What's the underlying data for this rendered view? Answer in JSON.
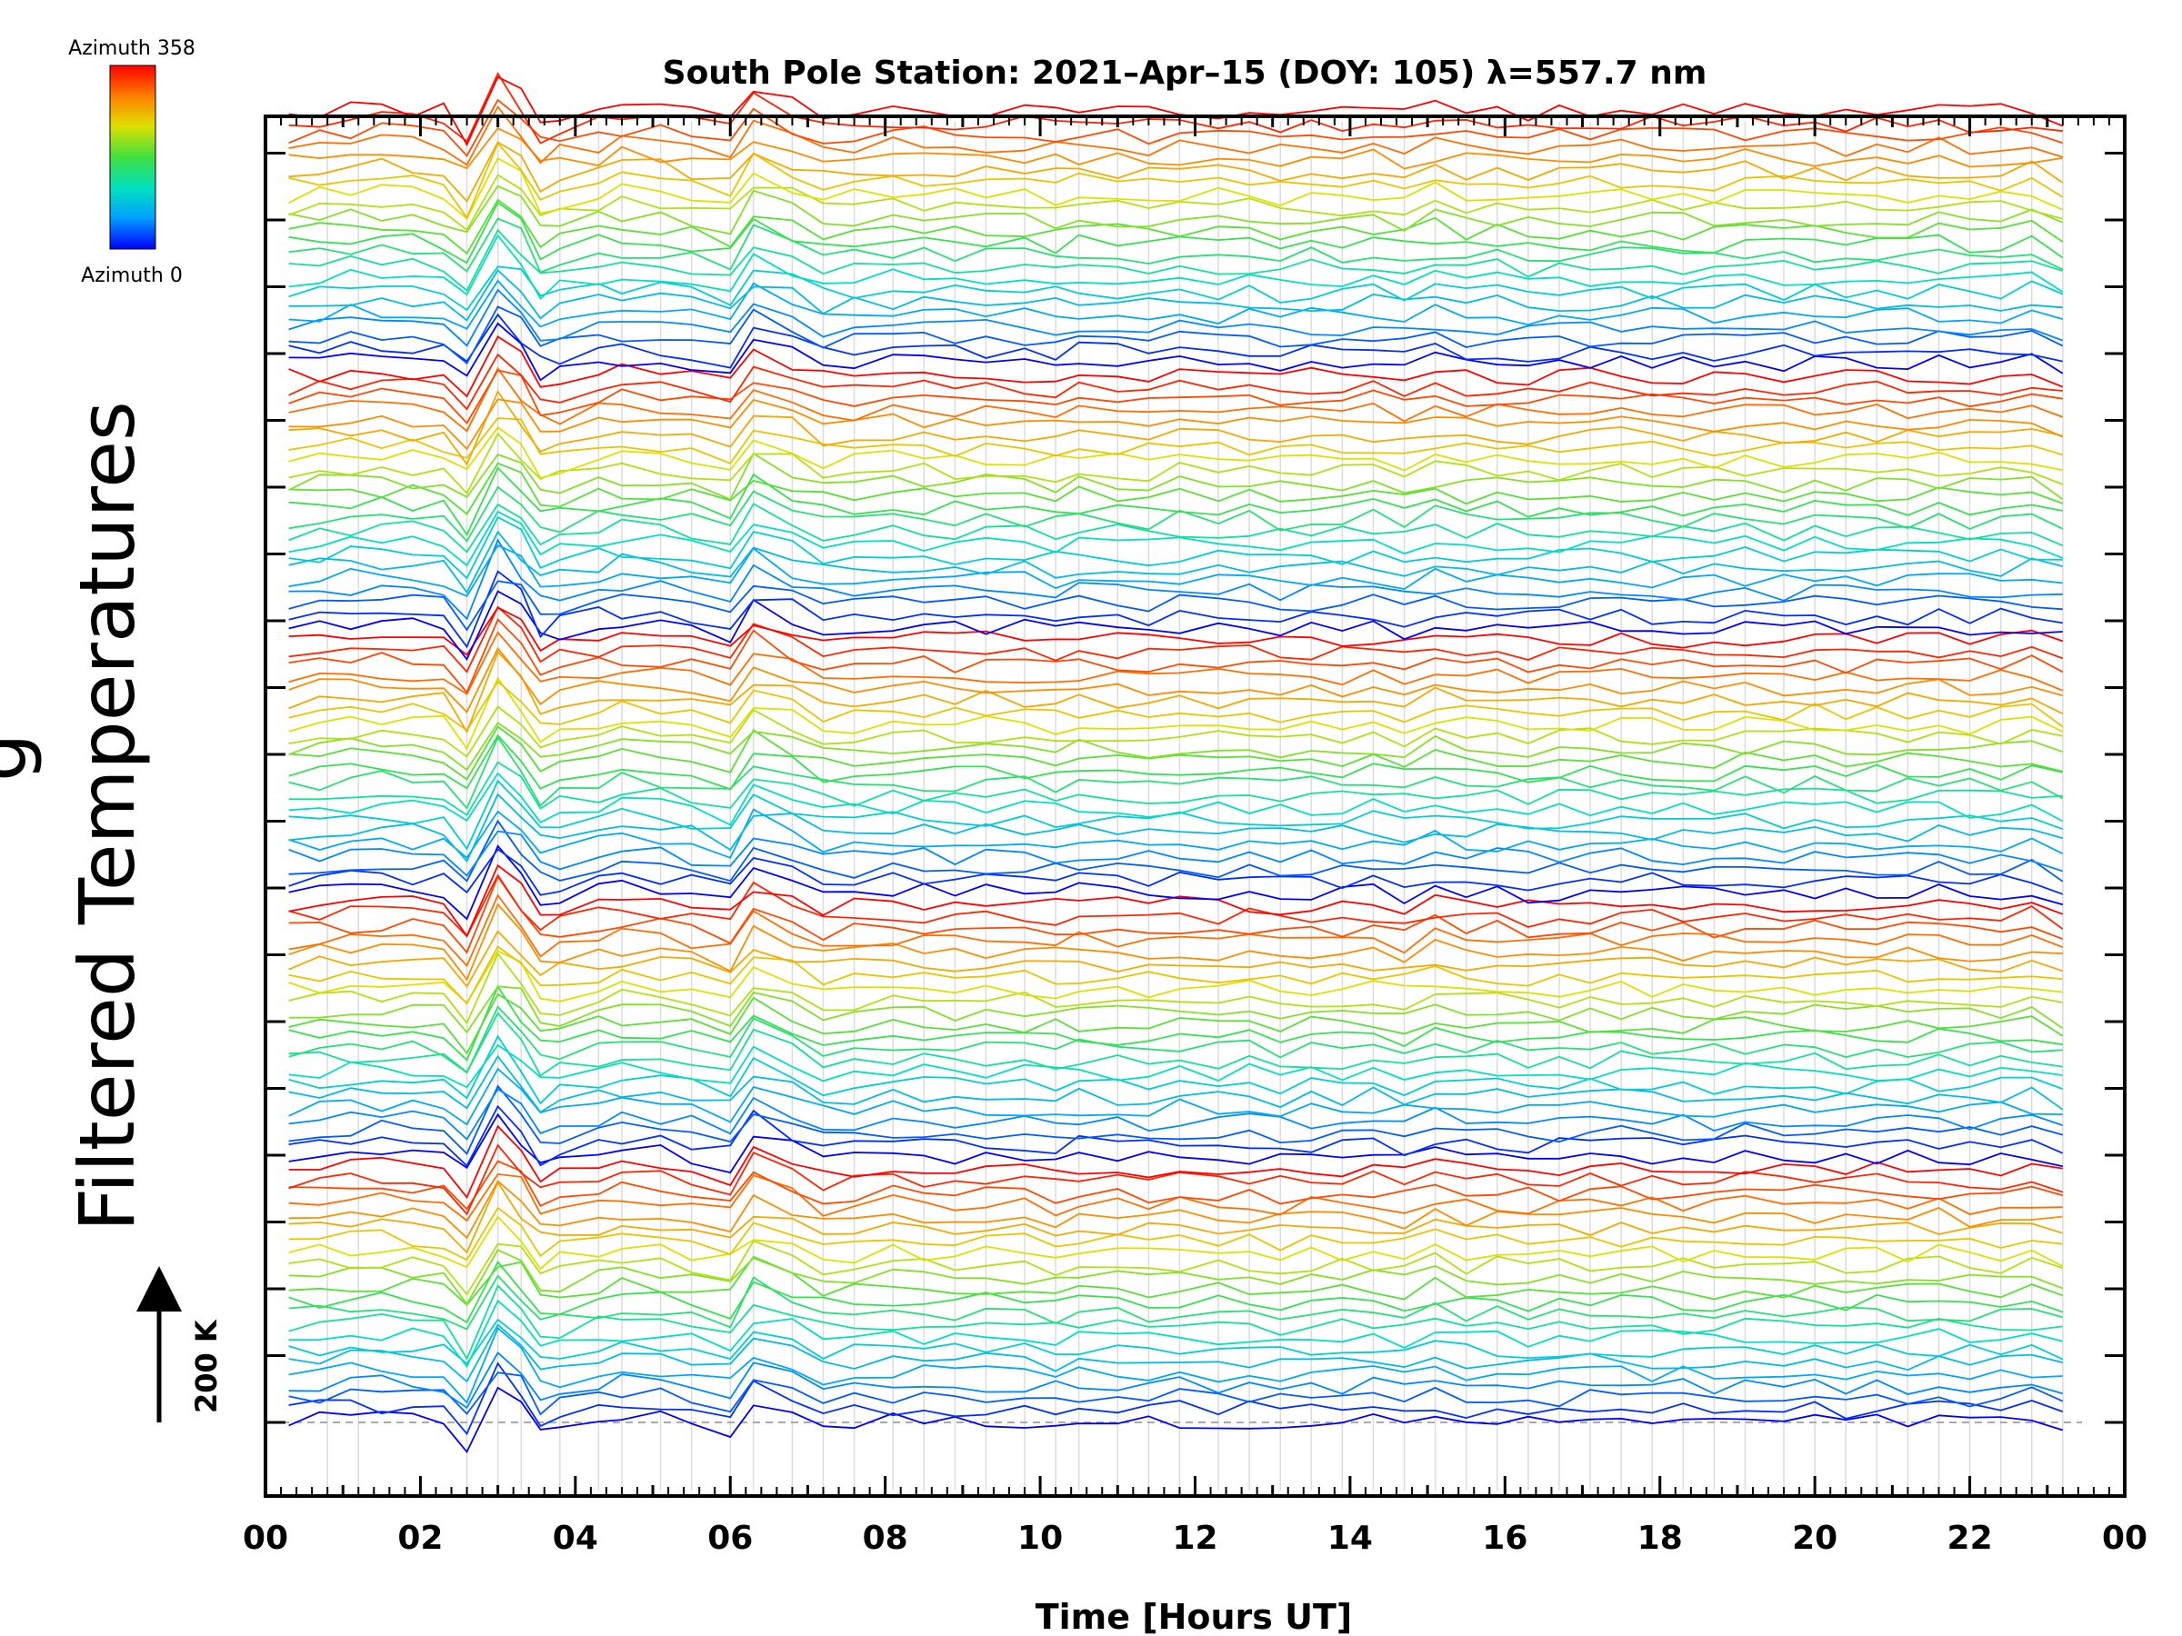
{
  "chart_data": {
    "type": "line",
    "title": "South Pole Station: 2021–Apr–15 (DOY: 105) λ=557.7 nm",
    "xlabel": "Time [Hours UT]",
    "ylabel": "Filtered Temperatures",
    "ylabel_clipped_fragment": "g",
    "scale_label": "200 K",
    "colorbar": {
      "top_label": "Azimuth 358",
      "bottom_label": "Azimuth 0",
      "colormap": [
        "#0000ff",
        "#00a0ff",
        "#00e0c0",
        "#40e040",
        "#e0e000",
        "#ff8000",
        "#ff0000"
      ]
    },
    "x_ticks": [
      "00",
      "02",
      "04",
      "06",
      "08",
      "10",
      "12",
      "14",
      "16",
      "18",
      "20",
      "22",
      "00"
    ],
    "xlim": [
      0,
      24
    ],
    "x_grid": [
      0.8,
      1.2,
      2.6,
      3.0,
      3.3,
      3.8,
      4.3,
      4.6,
      5.1,
      5.5,
      6.0,
      6.3,
      6.8,
      7.2,
      7.6,
      8.1,
      8.5,
      8.9,
      9.3,
      9.8,
      10.2,
      10.5,
      11.0,
      11.4,
      11.8,
      12.3,
      12.7,
      13.1,
      13.5,
      13.9,
      14.3,
      14.7,
      15.1,
      15.5,
      15.9,
      16.3,
      16.7,
      17.1,
      17.5,
      17.9,
      18.3,
      18.7,
      19.1,
      19.6,
      20.0,
      20.4,
      20.8,
      21.2,
      21.6,
      22.0,
      22.4,
      22.8,
      23.2
    ],
    "offset_between_traces_K": 18,
    "series_count": 110,
    "azimuth_range": [
      0,
      358
    ],
    "times": [
      0.3,
      0.7,
      1.1,
      1.5,
      1.9,
      2.3,
      2.6,
      3.0,
      3.3,
      3.55,
      3.8,
      4.3,
      4.6,
      5.1,
      5.5,
      6.0,
      6.3,
      6.8,
      7.2,
      7.6,
      8.1,
      8.5,
      8.9,
      9.3,
      9.8,
      10.2,
      10.5,
      11.0,
      11.4,
      11.8,
      12.3,
      12.7,
      13.1,
      13.5,
      13.9,
      14.3,
      14.7,
      15.1,
      15.5,
      15.9,
      16.3,
      16.7,
      17.1,
      17.5,
      17.9,
      18.3,
      18.7,
      19.1,
      19.6,
      20.0,
      20.4,
      20.8,
      21.2,
      21.6,
      22.0,
      22.4,
      22.8,
      23.2
    ],
    "common_signal_K": [
      0,
      4,
      8,
      10,
      6,
      2,
      -40,
      70,
      35,
      -20,
      -10,
      5,
      10,
      8,
      0,
      -15,
      45,
      20,
      -5,
      -2,
      6,
      3,
      0,
      4,
      2,
      -3,
      5,
      1,
      -2,
      4,
      0,
      3,
      -4,
      2,
      0,
      5,
      -6,
      12,
      0,
      3,
      -3,
      0,
      2,
      4,
      1,
      0,
      -2,
      5,
      0,
      3,
      -1,
      2,
      0,
      4,
      -2,
      1,
      6,
      -12
    ],
    "noise_amplitude_K": 12,
    "grid": true,
    "dashed_baseline": true
  }
}
